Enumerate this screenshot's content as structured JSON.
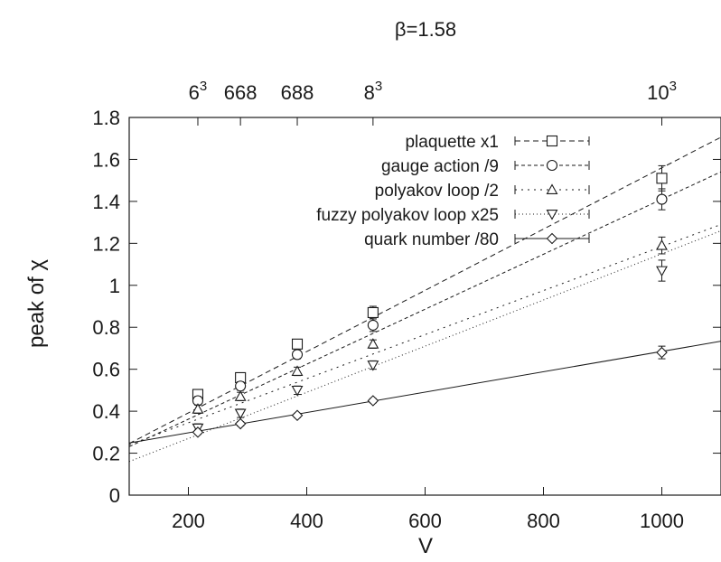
{
  "chart_data": {
    "type": "scatter",
    "title": "β=1.58",
    "xlabel": "V",
    "ylabel": "peak of χ",
    "xlim": [
      100,
      1100
    ],
    "ylim": [
      0,
      1.8
    ],
    "x_ticks": [
      200,
      400,
      600,
      800,
      1000
    ],
    "y_ticks": [
      0,
      0.2,
      0.4,
      0.6,
      0.8,
      1,
      1.2,
      1.4,
      1.6,
      1.8
    ],
    "y_tick_labels": [
      "0",
      "0.2",
      "0.4",
      "0.6",
      "0.8",
      "1",
      "1.2",
      "1.4",
      "1.6",
      "1.8"
    ],
    "top_axis": [
      {
        "value": 216,
        "base": "6",
        "sup": "3"
      },
      {
        "value": 288,
        "base": "668",
        "sup": ""
      },
      {
        "value": 384,
        "base": "688",
        "sup": ""
      },
      {
        "value": 512,
        "base": "8",
        "sup": "3"
      },
      {
        "value": 1000,
        "base": "10",
        "sup": "3"
      }
    ],
    "grid": false,
    "legend_position": "top-right",
    "x": [
      216,
      288,
      384,
      512,
      1000
    ],
    "series": [
      {
        "name": "plaquette x1",
        "marker": "square",
        "dash": "6 4",
        "values": [
          0.48,
          0.56,
          0.72,
          0.87,
          1.51
        ],
        "err": [
          0.02,
          0.02,
          0.02,
          0.03,
          0.06
        ],
        "fit": [
          0.1,
          0.00146
        ]
      },
      {
        "name": "gauge action /9",
        "marker": "circle",
        "dash": "4 3",
        "values": [
          0.45,
          0.52,
          0.67,
          0.81,
          1.41
        ],
        "err": [
          0.02,
          0.02,
          0.02,
          0.03,
          0.05
        ],
        "fit": [
          0.1,
          0.00131
        ]
      },
      {
        "name": "polyakov loop /2",
        "marker": "triangle-up",
        "dash": "2 5",
        "values": [
          0.41,
          0.47,
          0.59,
          0.72,
          1.19
        ],
        "err": [
          0.02,
          0.02,
          0.02,
          0.02,
          0.04
        ],
        "fit": [
          0.135,
          0.00105
        ]
      },
      {
        "name": "fuzzy polyakov loop x25",
        "marker": "triangle-down",
        "dash": "1 3",
        "values": [
          0.32,
          0.39,
          0.5,
          0.62,
          1.07
        ],
        "err": [
          0.02,
          0.02,
          0.02,
          0.02,
          0.05
        ],
        "fit": [
          0.05,
          0.0011
        ]
      },
      {
        "name": "quark number /80",
        "marker": "diamond",
        "dash": "",
        "values": [
          0.3,
          0.34,
          0.38,
          0.45,
          0.68
        ],
        "err": [
          0.01,
          0.01,
          0.01,
          0.01,
          0.03
        ],
        "fit": [
          0.2,
          0.000485
        ]
      }
    ]
  }
}
